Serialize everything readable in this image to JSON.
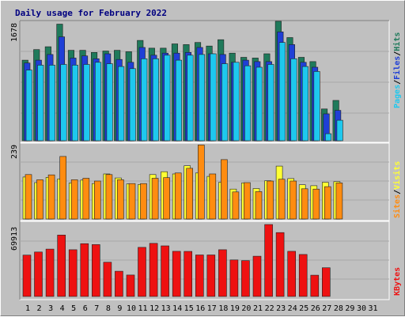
{
  "title": "Daily usage for February 2022",
  "colors": {
    "hits": "#1f7a5b",
    "files": "#1f3fd6",
    "pages": "#1ec8ee",
    "visits": "#ffff33",
    "sites": "#ff8c10",
    "kbytes": "#ee1111",
    "weekend": "#208060",
    "text": "#000000"
  },
  "legend_top": {
    "pages": "Pages",
    "files": "Files",
    "hits": "Hits",
    "sep": "/"
  },
  "legend_mid": {
    "sites": "Sites",
    "visits": "Visits",
    "sep": "/"
  },
  "legend_bottom": {
    "kbytes": "KBytes"
  },
  "chart_data": [
    {
      "type": "bar",
      "title": "Daily usage for February 2022",
      "categories": [
        "1",
        "2",
        "3",
        "4",
        "5",
        "6",
        "7",
        "8",
        "9",
        "10",
        "11",
        "12",
        "13",
        "14",
        "15",
        "16",
        "17",
        "18",
        "19",
        "20",
        "21",
        "22",
        "23",
        "24",
        "25",
        "26",
        "27",
        "28",
        "29",
        "30",
        "31"
      ],
      "weekend_days": [
        "5",
        "6",
        "12",
        "13",
        "19",
        "20",
        "26",
        "27"
      ],
      "ylim": [
        0,
        1678
      ],
      "max_label": "1678",
      "series": [
        {
          "name": "Hits",
          "values": [
            1140,
            1290,
            1330,
            1650,
            1280,
            1280,
            1250,
            1270,
            1280,
            1260,
            1420,
            1310,
            1310,
            1370,
            1360,
            1390,
            1340,
            1430,
            1240,
            1180,
            1170,
            1230,
            1690,
            1460,
            1180,
            1120,
            450,
            570,
            0,
            0,
            0
          ]
        },
        {
          "name": "Files",
          "values": [
            1100,
            1140,
            1220,
            1470,
            1170,
            1200,
            1160,
            1230,
            1150,
            1110,
            1320,
            1210,
            1240,
            1240,
            1250,
            1320,
            1230,
            1220,
            1110,
            1140,
            1120,
            1120,
            1540,
            1360,
            1110,
            1040,
            380,
            430,
            0,
            0,
            0
          ]
        },
        {
          "name": "Pages",
          "values": [
            1000,
            1070,
            1070,
            1080,
            1070,
            1080,
            1110,
            1090,
            1050,
            1020,
            1160,
            1160,
            1210,
            1140,
            1210,
            1220,
            1230,
            1090,
            1110,
            1060,
            1040,
            1080,
            1390,
            1160,
            1050,
            980,
            100,
            290,
            0,
            0,
            0
          ]
        }
      ]
    },
    {
      "type": "bar",
      "categories": [
        "1",
        "2",
        "3",
        "4",
        "5",
        "6",
        "7",
        "8",
        "9",
        "10",
        "11",
        "12",
        "13",
        "14",
        "15",
        "16",
        "17",
        "18",
        "19",
        "20",
        "21",
        "22",
        "23",
        "24",
        "25",
        "26",
        "27",
        "28",
        "29",
        "30",
        "31"
      ],
      "ylim": [
        0,
        239
      ],
      "max_label": "239",
      "series": [
        {
          "name": "Visits",
          "values": [
            135,
            117,
            134,
            129,
            116,
            125,
            114,
            145,
            132,
            113,
            111,
            143,
            152,
            145,
            171,
            148,
            137,
            118,
            96,
            116,
            98,
            123,
            170,
            130,
            110,
            107,
            118,
            120,
            0,
            0,
            0
          ]
        },
        {
          "name": "Sites",
          "values": [
            143,
            126,
            142,
            201,
            126,
            131,
            122,
            143,
            126,
            114,
            114,
            131,
            133,
            148,
            163,
            238,
            145,
            191,
            87,
            117,
            88,
            122,
            128,
            122,
            97,
            96,
            104,
            116,
            0,
            0,
            0
          ]
        }
      ]
    },
    {
      "type": "bar",
      "categories": [
        "1",
        "2",
        "3",
        "4",
        "5",
        "6",
        "7",
        "8",
        "9",
        "10",
        "11",
        "12",
        "13",
        "14",
        "15",
        "16",
        "17",
        "18",
        "19",
        "20",
        "21",
        "22",
        "23",
        "24",
        "25",
        "26",
        "27",
        "28",
        "29",
        "30",
        "31"
      ],
      "ylim": [
        0,
        69913
      ],
      "max_label": "69913",
      "series": [
        {
          "name": "KBytes",
          "values": [
            40200,
            43200,
            46000,
            59700,
            45400,
            51300,
            50400,
            33300,
            24500,
            20800,
            47700,
            51600,
            49200,
            43900,
            43800,
            40300,
            40300,
            45400,
            35500,
            34800,
            39100,
            69913,
            62100,
            43900,
            40800,
            20700,
            27900,
            0,
            0,
            0,
            0
          ]
        }
      ]
    }
  ]
}
